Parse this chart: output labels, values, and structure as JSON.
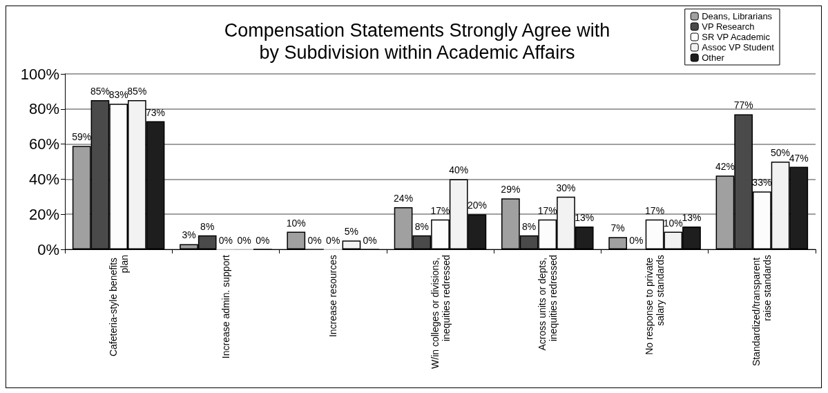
{
  "chart_data": {
    "type": "bar",
    "title": "Compensation Statements Strongly Agree with\nby Subdivision within Academic Affairs",
    "categories": [
      "Cafeteria-style benefits plan",
      "Increase admin. support",
      "Increase resources",
      "W/in colleges or divisions, inequities redressed",
      "Across units or depts, inequities redressed",
      "No response to private salary standards",
      "Standardized/transparent raise standards"
    ],
    "series": [
      {
        "name": "Deans, Librarians",
        "color": "#a0a0a0",
        "values": [
          59,
          3,
          10,
          24,
          29,
          7,
          42
        ],
        "value_labels": [
          "59%",
          "3%",
          "10%",
          "24%",
          "29%",
          "7%",
          "42%"
        ]
      },
      {
        "name": "VP Research",
        "color": "#4a4a4a",
        "values": [
          85,
          8,
          0,
          8,
          8,
          0,
          77
        ],
        "value_labels": [
          "85%",
          "8%",
          "0%",
          "8%",
          "8%",
          "0%",
          "77%"
        ]
      },
      {
        "name": "SR VP Academic",
        "color": "#fcfcfc",
        "values": [
          83,
          0,
          0,
          17,
          17,
          17,
          33
        ],
        "value_labels": [
          "83%",
          "0%",
          "0%",
          "17%",
          "17%",
          "17%",
          "33%"
        ]
      },
      {
        "name": "Assoc VP Student",
        "color": "#f2f2f2",
        "values": [
          85,
          0,
          5,
          40,
          30,
          10,
          50
        ],
        "value_labels": [
          "85%",
          "0%",
          "5%",
          "40%",
          "30%",
          "10%",
          "50%"
        ]
      },
      {
        "name": "Other",
        "color": "#1e1e1e",
        "values": [
          73,
          0,
          0,
          20,
          13,
          13,
          47
        ],
        "value_labels": [
          "73%",
          "0%",
          "0%",
          "20%",
          "13%",
          "13%",
          "47%"
        ]
      }
    ],
    "ylim": [
      0,
      100
    ],
    "yticks": [
      {
        "value": 0,
        "label": "0%"
      },
      {
        "value": 20,
        "label": "20%"
      },
      {
        "value": 40,
        "label": "40%"
      },
      {
        "value": 60,
        "label": "60%"
      },
      {
        "value": 80,
        "label": "80%"
      },
      {
        "value": 100,
        "label": "100%"
      }
    ],
    "grid": "y",
    "legend": "top right"
  }
}
